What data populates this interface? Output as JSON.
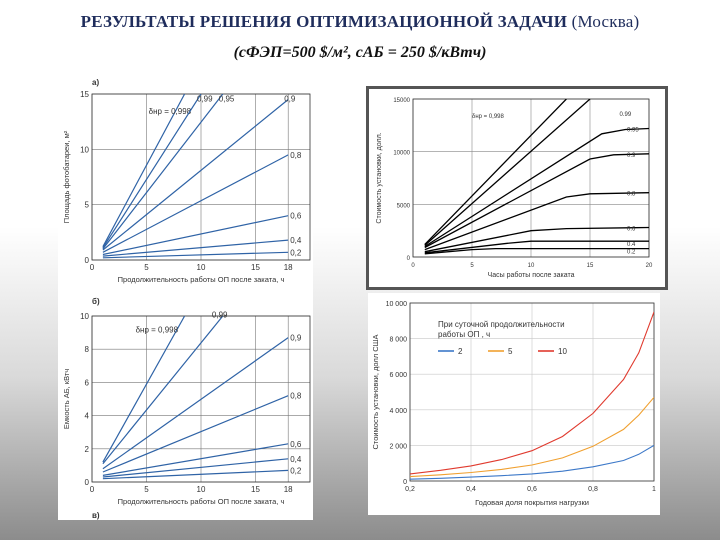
{
  "header": {
    "title_main": "РЕЗУЛЬТАТЫ РЕШЕНИЯ ОПТИМИЗАЦИОННОЙ ЗАДАЧИ",
    "title_paren": "(Москва)",
    "subtitle": "(сФЭП=500 $/м², сАБ = 250 $/кВтч)"
  },
  "chart_data": [
    {
      "type": "line",
      "panel_label": "а)",
      "xlabel": "Продолжительность работы ОП после заката, ч",
      "ylabel": "Площадь фотобатареи, м²",
      "xlim": [
        0,
        20
      ],
      "ylim": [
        0,
        15
      ],
      "xticks": [
        0,
        5,
        10,
        15,
        18
      ],
      "yticks": [
        0,
        5,
        10,
        15
      ],
      "grid": true,
      "color": "#2f63a6",
      "series": [
        {
          "name": "δнр = 0,998",
          "x": [
            1,
            8.5
          ],
          "y": [
            1.2,
            15
          ]
        },
        {
          "name": "0,99",
          "x": [
            1,
            10
          ],
          "y": [
            1.1,
            15
          ]
        },
        {
          "name": "0,95",
          "x": [
            1,
            12
          ],
          "y": [
            1.0,
            15
          ]
        },
        {
          "name": "0,9",
          "x": [
            1,
            18
          ],
          "y": [
            0.9,
            14.5
          ]
        },
        {
          "name": "0,8",
          "x": [
            1,
            18
          ],
          "y": [
            0.7,
            9.5
          ]
        },
        {
          "name": "0,6",
          "x": [
            1,
            18
          ],
          "y": [
            0.5,
            4.0
          ]
        },
        {
          "name": "0,4",
          "x": [
            1,
            18
          ],
          "y": [
            0.35,
            1.8
          ]
        },
        {
          "name": "0,2",
          "x": [
            1,
            18
          ],
          "y": [
            0.2,
            0.7
          ]
        }
      ]
    },
    {
      "type": "line",
      "panel_label": "б)",
      "panel_label_bottom": "в)",
      "xlabel": "Продолжительность работы ОП после заката, ч",
      "ylabel": "Емкость АБ, кВтч",
      "xlim": [
        0,
        20
      ],
      "ylim": [
        0,
        10
      ],
      "xticks": [
        0,
        5,
        10,
        15,
        18
      ],
      "yticks": [
        0,
        2,
        4,
        6,
        8,
        10
      ],
      "grid": true,
      "color": "#2f63a6",
      "series": [
        {
          "name": "δнр = 0,998",
          "x": [
            1,
            8.5
          ],
          "y": [
            1.2,
            10
          ]
        },
        {
          "name": "0,99",
          "x": [
            1,
            12
          ],
          "y": [
            1.1,
            10
          ]
        },
        {
          "name": "0,9",
          "x": [
            1,
            18
          ],
          "y": [
            0.8,
            8.7
          ]
        },
        {
          "name": "0,8",
          "x": [
            1,
            18
          ],
          "y": [
            0.6,
            5.2
          ]
        },
        {
          "name": "0,6",
          "x": [
            1,
            18
          ],
          "y": [
            0.4,
            2.3
          ]
        },
        {
          "name": "0,4",
          "x": [
            1,
            18
          ],
          "y": [
            0.3,
            1.4
          ]
        },
        {
          "name": "0,2",
          "x": [
            1,
            18
          ],
          "y": [
            0.2,
            0.7
          ]
        }
      ]
    },
    {
      "type": "line",
      "xlabel": "Часы работы после заката",
      "ylabel": "Стоимость установки, долл.",
      "xlim": [
        0,
        20
      ],
      "ylim": [
        0,
        15000
      ],
      "xticks": [
        0,
        5,
        10,
        15,
        20
      ],
      "yticks": [
        0,
        5000,
        10000,
        15000
      ],
      "grid": true,
      "color": "#000000",
      "series": [
        {
          "name": "δнр = 0,998",
          "x": [
            1,
            13
          ],
          "y": [
            1200,
            15000
          ]
        },
        {
          "name": "0.99",
          "x": [
            1,
            15
          ],
          "y": [
            1100,
            15000
          ]
        },
        {
          "name": "0.95",
          "x": [
            1,
            16,
            18,
            20
          ],
          "y": [
            1000,
            11700,
            12100,
            12200
          ]
        },
        {
          "name": "0.9",
          "x": [
            1,
            15,
            17,
            20
          ],
          "y": [
            900,
            9300,
            9700,
            9800
          ]
        },
        {
          "name": "0.8",
          "x": [
            1,
            13,
            15,
            20
          ],
          "y": [
            700,
            5700,
            6000,
            6100
          ]
        },
        {
          "name": "0.6",
          "x": [
            1,
            10,
            13,
            20
          ],
          "y": [
            500,
            2500,
            2700,
            2800
          ]
        },
        {
          "name": "0.4",
          "x": [
            1,
            8,
            10,
            20
          ],
          "y": [
            400,
            1300,
            1500,
            1500
          ]
        },
        {
          "name": "0.2",
          "x": [
            1,
            5,
            7,
            20
          ],
          "y": [
            300,
            700,
            800,
            800
          ]
        }
      ]
    },
    {
      "type": "line",
      "xlabel": "Годовая доля покрытия нагрузки",
      "ylabel": "Стоимость установки, долл США",
      "xlim": [
        0.2,
        1
      ],
      "ylim": [
        0,
        10000
      ],
      "xticks": [
        0.2,
        0.4,
        0.6,
        0.8,
        1
      ],
      "xticklabels": [
        "0,2",
        "0,4",
        "0,6",
        "0,8",
        "1"
      ],
      "yticks": [
        0,
        2000,
        4000,
        6000,
        8000,
        10000
      ],
      "yticklabels": [
        "0",
        "2 000",
        "4 000",
        "6 000",
        "8 000",
        "10 000"
      ],
      "grid": true,
      "legend_title": "При суточной продолжительности работы ОП , ч",
      "legend_position": "top-left",
      "series": [
        {
          "name": "2",
          "color": "#3c78c8",
          "x": [
            0.2,
            0.3,
            0.4,
            0.5,
            0.6,
            0.7,
            0.8,
            0.9,
            0.95,
            1.0
          ],
          "y": [
            100,
            150,
            220,
            300,
            400,
            550,
            800,
            1150,
            1500,
            2000
          ]
        },
        {
          "name": "5",
          "color": "#f0a030",
          "x": [
            0.2,
            0.3,
            0.4,
            0.5,
            0.6,
            0.7,
            0.8,
            0.9,
            0.95,
            1.0
          ],
          "y": [
            250,
            350,
            480,
            650,
            900,
            1300,
            1950,
            2900,
            3700,
            4700
          ]
        },
        {
          "name": "10",
          "color": "#e03a2e",
          "x": [
            0.2,
            0.3,
            0.4,
            0.5,
            0.6,
            0.7,
            0.8,
            0.9,
            0.95,
            1.0
          ],
          "y": [
            400,
            600,
            850,
            1200,
            1700,
            2500,
            3800,
            5700,
            7200,
            9500
          ]
        }
      ]
    }
  ]
}
